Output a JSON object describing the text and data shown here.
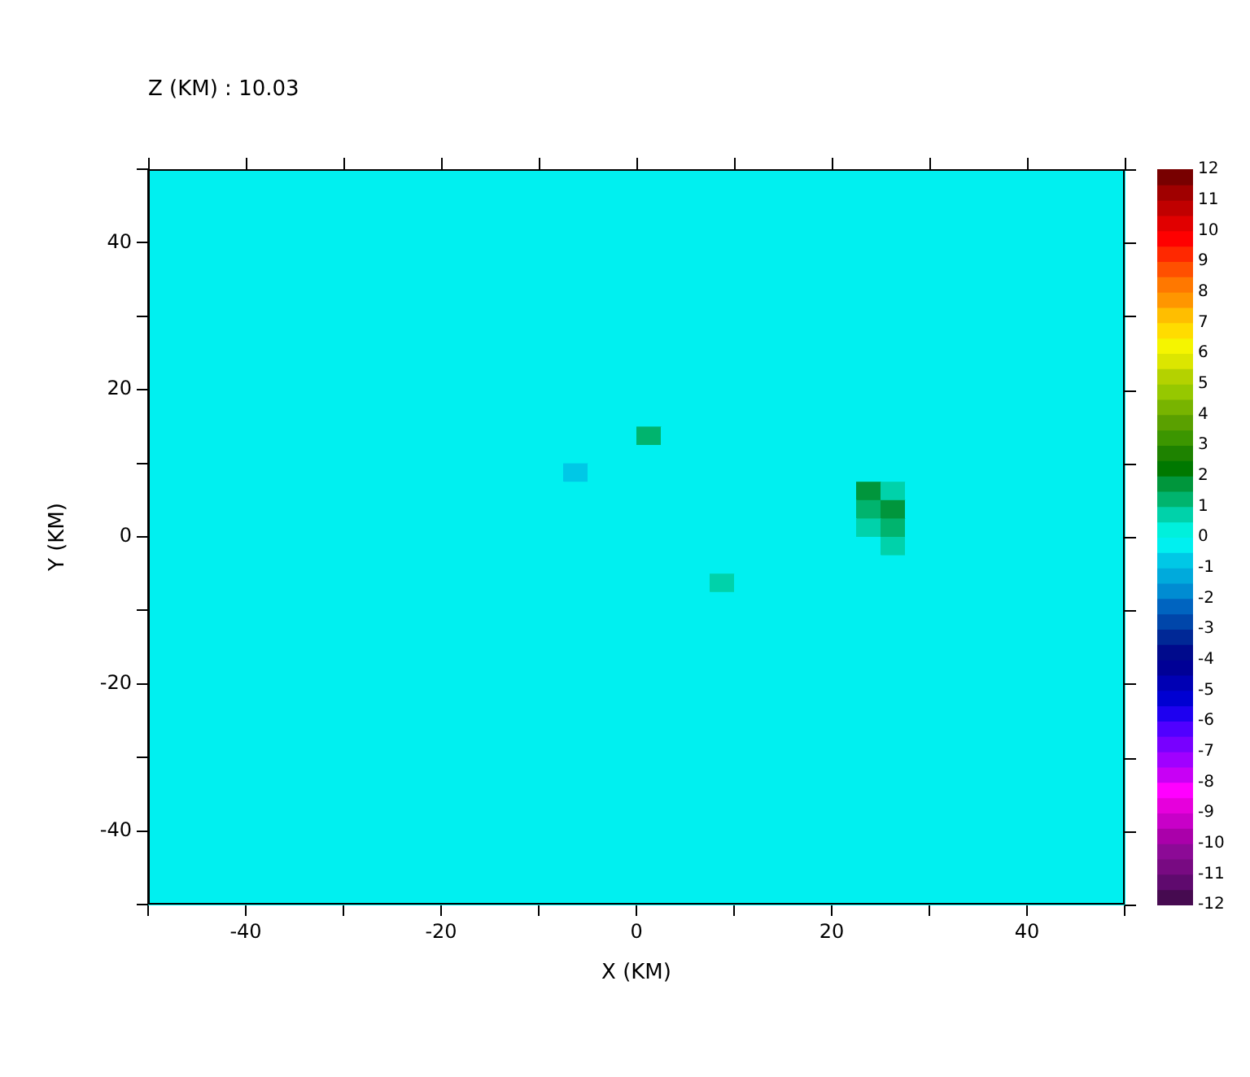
{
  "chart_data": {
    "type": "heatmap",
    "title": "Z (KM) : 10.03",
    "xlabel": "X (KM)",
    "ylabel": "Y (KM)",
    "x": [
      -48.75,
      -46.25,
      -43.75,
      -41.25,
      -38.75,
      -36.25,
      -33.75,
      -31.25,
      -28.75,
      -26.25,
      -23.75,
      -21.25,
      -18.75,
      -16.25,
      -13.75,
      -11.25,
      -8.75,
      -6.25,
      -3.75,
      -1.25,
      1.25,
      3.75,
      6.25,
      8.75,
      11.25,
      13.75,
      16.25,
      18.75,
      21.25,
      23.75,
      26.25,
      28.75,
      31.25,
      33.75,
      36.25,
      38.75,
      41.25,
      43.75,
      46.25,
      48.75
    ],
    "y": [
      48.75,
      46.25,
      43.75,
      41.25,
      38.75,
      36.25,
      33.75,
      31.25,
      28.75,
      26.25,
      23.75,
      21.25,
      18.75,
      16.25,
      13.75,
      11.25,
      8.75,
      6.25,
      3.75,
      1.25,
      -1.25,
      -3.75,
      -6.25,
      -8.75,
      -11.25,
      -13.75,
      -16.25,
      -18.75,
      -21.25,
      -23.75,
      -26.25,
      -28.75,
      -31.25,
      -33.75,
      -36.25,
      -38.75,
      -41.25,
      -43.75,
      -46.25,
      -48.75
    ],
    "xlim": [
      -50,
      50
    ],
    "ylim": [
      -50,
      50
    ],
    "xticks": [
      {
        "value": -50,
        "label": null
      },
      -40,
      {
        "value": -30,
        "label": null
      },
      -20,
      {
        "value": -10,
        "label": null
      },
      0,
      {
        "value": 10,
        "label": null
      },
      20,
      {
        "value": 30,
        "label": null
      },
      40,
      {
        "value": 50,
        "label": null
      }
    ],
    "yticks": [
      {
        "value": -50,
        "label": null
      },
      -40,
      {
        "value": -30,
        "label": null
      },
      -20,
      {
        "value": -10,
        "label": null
      },
      0,
      {
        "value": 10,
        "label": null
      },
      20,
      {
        "value": 30,
        "label": null
      },
      40,
      {
        "value": 50,
        "label": null
      }
    ],
    "clim": [
      -12,
      12
    ],
    "cticks": [
      -12,
      -11,
      -10,
      -9,
      -8,
      -7,
      -6,
      -5,
      -4,
      -3,
      -2,
      -1,
      0,
      1,
      2,
      3,
      4,
      5,
      6,
      7,
      8,
      9,
      10,
      11,
      12
    ],
    "cells": [
      [
        -0.25,
        -0.25,
        -0.25,
        -0.25,
        -0.25,
        -0.25,
        -0.25,
        -0.25,
        -0.25,
        -0.25,
        -0.25,
        -0.25,
        -0.25,
        -0.25,
        -0.25,
        -0.25,
        -0.25,
        -0.25,
        -0.25,
        -0.25,
        -0.25,
        -0.25,
        -0.25,
        -0.25,
        -0.25,
        -0.25,
        -0.25,
        -0.25,
        -0.25,
        -0.25,
        -0.25,
        -0.25,
        -0.25,
        -0.25,
        -0.25,
        -0.25,
        -0.25,
        -0.25,
        -0.25,
        -0.25
      ],
      [
        -0.25,
        -0.25,
        -0.25,
        -0.25,
        -0.25,
        -0.25,
        -0.25,
        -0.25,
        -0.25,
        -0.25,
        -0.25,
        -0.25,
        -0.25,
        -0.25,
        -0.25,
        -0.25,
        -0.25,
        -0.25,
        -0.25,
        -0.25,
        -0.25,
        -0.25,
        -0.25,
        -0.25,
        -0.25,
        -0.25,
        -0.25,
        -0.25,
        -0.25,
        -0.25,
        -0.25,
        -0.25,
        -0.25,
        -0.25,
        -0.25,
        -0.25,
        -0.25,
        -0.25,
        -0.25,
        -0.25
      ],
      [
        -0.25,
        -0.25,
        -0.25,
        -0.25,
        -0.25,
        -0.25,
        -0.25,
        -0.25,
        -0.25,
        -0.25,
        -0.25,
        -0.25,
        -0.25,
        -0.25,
        -0.25,
        -0.25,
        -0.25,
        -0.25,
        -0.25,
        -0.25,
        -0.25,
        -0.25,
        -0.25,
        -0.25,
        -0.25,
        -0.25,
        -0.25,
        -0.25,
        -0.25,
        -0.25,
        -0.25,
        -0.25,
        -0.25,
        -0.25,
        -0.25,
        -0.25,
        -0.25,
        -0.25,
        -0.25,
        -0.25
      ],
      [
        -0.25,
        -0.25,
        -0.25,
        -0.25,
        -0.25,
        -0.25,
        -0.25,
        -0.25,
        -0.25,
        -0.25,
        -0.25,
        -0.25,
        -0.25,
        -0.25,
        -0.25,
        -0.25,
        -0.25,
        -0.25,
        -0.25,
        -0.25,
        -0.25,
        -0.25,
        -0.25,
        -0.25,
        -0.25,
        -0.25,
        -0.25,
        -0.25,
        -0.25,
        -0.25,
        -0.25,
        -0.25,
        -0.25,
        -0.25,
        -0.25,
        -0.25,
        -0.25,
        -0.25,
        -0.25,
        -0.25
      ],
      [
        -0.25,
        -0.25,
        -0.25,
        -0.25,
        -0.25,
        -0.25,
        -0.25,
        -0.25,
        -0.25,
        -0.25,
        -0.25,
        -0.25,
        -0.25,
        -0.25,
        -0.25,
        -0.25,
        -0.25,
        -0.25,
        -0.25,
        -0.25,
        -0.25,
        -0.25,
        -0.25,
        -0.25,
        -0.25,
        -0.25,
        -0.25,
        -0.25,
        -0.25,
        -0.25,
        -0.25,
        -0.25,
        -0.25,
        -0.25,
        -0.25,
        -0.25,
        -0.25,
        -0.25,
        -0.25,
        -0.25
      ],
      [
        -0.25,
        -0.25,
        -0.25,
        -0.25,
        -0.25,
        -0.25,
        -0.25,
        -0.25,
        -0.25,
        -0.25,
        -0.25,
        -0.25,
        -0.25,
        -0.25,
        -0.25,
        -0.25,
        -0.25,
        -0.25,
        -0.25,
        -0.25,
        -0.25,
        -0.25,
        -0.25,
        -0.25,
        -0.25,
        -0.25,
        -0.25,
        -0.25,
        -0.25,
        -0.25,
        -0.25,
        -0.25,
        -0.25,
        -0.25,
        -0.25,
        -0.25,
        -0.25,
        -0.25,
        -0.25,
        -0.25
      ],
      [
        -0.25,
        -0.25,
        -0.25,
        -0.25,
        -0.25,
        -0.25,
        -0.25,
        -0.25,
        -0.25,
        -0.25,
        -0.25,
        -0.25,
        -0.25,
        -0.25,
        -0.25,
        -0.25,
        -0.25,
        -0.25,
        -0.25,
        -0.25,
        -0.25,
        -0.25,
        -0.25,
        -0.25,
        -0.25,
        -0.25,
        -0.25,
        -0.25,
        -0.25,
        -0.25,
        -0.25,
        -0.25,
        -0.25,
        -0.25,
        -0.25,
        -0.25,
        -0.25,
        -0.25,
        -0.25,
        -0.25
      ],
      [
        -0.25,
        -0.25,
        -0.25,
        -0.25,
        -0.25,
        -0.25,
        -0.25,
        -0.25,
        -0.25,
        -0.25,
        -0.25,
        -0.25,
        -0.25,
        -0.25,
        -0.25,
        -0.25,
        -0.25,
        -0.25,
        -0.25,
        -0.25,
        -0.25,
        -0.25,
        -0.25,
        -0.25,
        -0.25,
        -0.25,
        -0.25,
        -0.25,
        -0.25,
        -0.25,
        -0.25,
        -0.25,
        -0.25,
        -0.25,
        -0.25,
        -0.25,
        -0.25,
        -0.25,
        -0.25,
        -0.25
      ],
      [
        -0.25,
        -0.25,
        -0.25,
        -0.25,
        -0.25,
        -0.25,
        -0.25,
        -0.25,
        -0.25,
        -0.25,
        -0.25,
        -0.25,
        -0.25,
        -0.25,
        -0.25,
        -0.25,
        -0.25,
        -0.25,
        -0.25,
        -0.25,
        -0.25,
        -0.25,
        -0.25,
        -0.25,
        -0.25,
        -0.25,
        -0.25,
        -0.25,
        -0.25,
        -0.25,
        -0.25,
        -0.25,
        -0.25,
        -0.25,
        -0.25,
        -0.25,
        -0.25,
        -0.25,
        -0.25,
        -0.25
      ],
      [
        -0.25,
        -0.25,
        -0.25,
        -0.25,
        -0.25,
        -0.25,
        -0.25,
        -0.25,
        -0.25,
        -0.25,
        -0.25,
        -0.25,
        -0.25,
        -0.25,
        -0.25,
        -0.25,
        -0.25,
        -0.25,
        -0.25,
        -0.25,
        -0.25,
        -0.25,
        -0.25,
        -0.25,
        -0.25,
        -0.25,
        -0.25,
        -0.25,
        -0.25,
        -0.25,
        -0.25,
        -0.25,
        -0.25,
        -0.25,
        -0.25,
        -0.25,
        -0.25,
        -0.25,
        -0.25,
        -0.25
      ],
      [
        -0.25,
        -0.25,
        -0.25,
        -0.25,
        -0.25,
        -0.25,
        -0.25,
        -0.25,
        -0.25,
        -0.25,
        -0.25,
        -0.25,
        -0.25,
        -0.25,
        -0.25,
        -0.25,
        -0.25,
        -0.25,
        -0.25,
        -0.25,
        -0.25,
        -0.25,
        -0.25,
        -0.25,
        -0.25,
        -0.25,
        -0.25,
        -0.25,
        -0.25,
        -0.25,
        -0.25,
        -0.25,
        -0.25,
        -0.25,
        -0.25,
        -0.25,
        -0.25,
        -0.25,
        -0.25,
        -0.25
      ],
      [
        -0.25,
        -0.25,
        -0.25,
        -0.25,
        -0.25,
        -0.25,
        -0.25,
        -0.25,
        -0.25,
        -0.25,
        -0.25,
        -0.25,
        -0.25,
        -0.25,
        -0.25,
        -0.25,
        -0.25,
        -0.25,
        -0.25,
        -0.25,
        -0.25,
        -0.25,
        -0.25,
        -0.25,
        -0.25,
        -0.25,
        -0.25,
        -0.25,
        -0.25,
        -0.25,
        -0.25,
        -0.25,
        -0.25,
        -0.25,
        -0.25,
        -0.25,
        -0.25,
        -0.25,
        -0.25,
        -0.25
      ],
      [
        -0.25,
        -0.25,
        -0.25,
        -0.25,
        -0.25,
        -0.25,
        -0.25,
        -0.25,
        -0.25,
        -0.25,
        -0.25,
        -0.25,
        -0.25,
        -0.25,
        -0.25,
        -0.25,
        -0.25,
        -0.25,
        -0.25,
        -0.25,
        -0.25,
        -0.25,
        -0.25,
        -0.25,
        -0.25,
        -0.25,
        -0.25,
        -0.25,
        -0.25,
        -0.25,
        -0.25,
        -0.25,
        -0.25,
        -0.25,
        -0.25,
        -0.25,
        -0.25,
        -0.25,
        -0.25,
        -0.25
      ],
      [
        -0.25,
        -0.25,
        -0.25,
        -0.25,
        -0.25,
        -0.25,
        -0.25,
        -0.25,
        -0.25,
        -0.25,
        -0.25,
        -0.25,
        -0.25,
        -0.25,
        -0.25,
        -0.25,
        -0.25,
        -0.25,
        -0.25,
        -0.25,
        -0.25,
        -0.25,
        -0.25,
        -0.25,
        -0.25,
        -0.25,
        -0.25,
        -0.25,
        -0.25,
        -0.25,
        -0.25,
        -0.25,
        -0.25,
        -0.25,
        -0.25,
        -0.25,
        -0.25,
        -0.25,
        -0.25,
        -0.25
      ],
      [
        -0.25,
        -0.25,
        -0.25,
        -0.25,
        -0.25,
        -0.25,
        -0.25,
        -0.25,
        -0.25,
        -0.25,
        -0.25,
        -0.25,
        -0.25,
        -0.25,
        -0.25,
        -0.25,
        -0.25,
        -0.25,
        -0.25,
        -0.25,
        1.25,
        -0.25,
        -0.25,
        -0.25,
        -0.25,
        -0.25,
        -0.25,
        -0.25,
        -0.25,
        -0.25,
        -0.25,
        -0.25,
        -0.25,
        -0.25,
        -0.25,
        -0.25,
        -0.25,
        -0.25,
        -0.25,
        -0.25
      ],
      [
        -0.25,
        -0.25,
        -0.25,
        -0.25,
        -0.25,
        -0.25,
        -0.25,
        -0.25,
        -0.25,
        -0.25,
        -0.25,
        -0.25,
        -0.25,
        -0.25,
        -0.25,
        -0.25,
        -0.25,
        -0.25,
        -0.25,
        -0.25,
        -0.25,
        -0.25,
        -0.25,
        -0.25,
        -0.25,
        -0.25,
        -0.25,
        -0.25,
        -0.25,
        -0.25,
        -0.25,
        -0.25,
        -0.25,
        -0.25,
        -0.25,
        -0.25,
        -0.25,
        -0.25,
        -0.25,
        -0.25
      ],
      [
        -0.25,
        -0.25,
        -0.25,
        -0.25,
        -0.25,
        -0.25,
        -0.25,
        -0.25,
        -0.25,
        -0.25,
        -0.25,
        -0.25,
        -0.25,
        -0.25,
        -0.25,
        -0.25,
        -0.25,
        -0.75,
        -0.25,
        -0.25,
        -0.25,
        -0.25,
        -0.25,
        -0.25,
        -0.25,
        -0.25,
        -0.25,
        -0.25,
        -0.25,
        -0.25,
        -0.25,
        -0.25,
        -0.25,
        -0.25,
        -0.25,
        -0.25,
        -0.25,
        -0.25,
        -0.25,
        -0.25
      ],
      [
        -0.25,
        -0.25,
        -0.25,
        -0.25,
        -0.25,
        -0.25,
        -0.25,
        -0.25,
        -0.25,
        -0.25,
        -0.25,
        -0.25,
        -0.25,
        -0.25,
        -0.25,
        -0.25,
        -0.25,
        -0.25,
        -0.25,
        -0.25,
        -0.25,
        -0.25,
        -0.25,
        -0.25,
        -0.25,
        -0.25,
        -0.25,
        -0.25,
        -0.25,
        1.75,
        0.75,
        -0.25,
        -0.25,
        -0.25,
        -0.25,
        -0.25,
        -0.25,
        -0.25,
        -0.25,
        -0.25
      ],
      [
        -0.25,
        -0.25,
        -0.25,
        -0.25,
        -0.25,
        -0.25,
        -0.25,
        -0.25,
        -0.25,
        -0.25,
        -0.25,
        -0.25,
        -0.25,
        -0.25,
        -0.25,
        -0.25,
        -0.25,
        -0.25,
        -0.25,
        -0.25,
        -0.25,
        -0.25,
        -0.25,
        -0.25,
        -0.25,
        -0.25,
        -0.25,
        -0.25,
        -0.25,
        1.25,
        1.75,
        -0.25,
        -0.25,
        -0.25,
        -0.25,
        -0.25,
        -0.25,
        -0.25,
        -0.25,
        -0.25
      ],
      [
        -0.25,
        -0.25,
        -0.25,
        -0.25,
        -0.25,
        -0.25,
        -0.25,
        -0.25,
        -0.25,
        -0.25,
        -0.25,
        -0.25,
        -0.25,
        -0.25,
        -0.25,
        -0.25,
        -0.25,
        -0.25,
        -0.25,
        -0.25,
        -0.25,
        -0.25,
        -0.25,
        -0.25,
        -0.25,
        -0.25,
        -0.25,
        -0.25,
        -0.25,
        0.75,
        1.25,
        -0.25,
        -0.25,
        -0.25,
        -0.25,
        -0.25,
        -0.25,
        -0.25,
        -0.25,
        -0.25
      ],
      [
        -0.25,
        -0.25,
        -0.25,
        -0.25,
        -0.25,
        -0.25,
        -0.25,
        -0.25,
        -0.25,
        -0.25,
        -0.25,
        -0.25,
        -0.25,
        -0.25,
        -0.25,
        -0.25,
        -0.25,
        -0.25,
        -0.25,
        -0.25,
        -0.25,
        -0.25,
        -0.25,
        -0.25,
        -0.25,
        -0.25,
        -0.25,
        -0.25,
        -0.25,
        -0.25,
        0.75,
        -0.25,
        -0.25,
        -0.25,
        -0.25,
        -0.25,
        -0.25,
        -0.25,
        -0.25,
        -0.25
      ],
      [
        -0.25,
        -0.25,
        -0.25,
        -0.25,
        -0.25,
        -0.25,
        -0.25,
        -0.25,
        -0.25,
        -0.25,
        -0.25,
        -0.25,
        -0.25,
        -0.25,
        -0.25,
        -0.25,
        -0.25,
        -0.25,
        -0.25,
        -0.25,
        -0.25,
        -0.25,
        -0.25,
        -0.25,
        -0.25,
        -0.25,
        -0.25,
        -0.25,
        -0.25,
        -0.25,
        -0.25,
        -0.25,
        -0.25,
        -0.25,
        -0.25,
        -0.25,
        -0.25,
        -0.25,
        -0.25,
        -0.25
      ],
      [
        -0.25,
        -0.25,
        -0.25,
        -0.25,
        -0.25,
        -0.25,
        -0.25,
        -0.25,
        -0.25,
        -0.25,
        -0.25,
        -0.25,
        -0.25,
        -0.25,
        -0.25,
        -0.25,
        -0.25,
        -0.25,
        -0.25,
        -0.25,
        -0.25,
        -0.25,
        -0.25,
        0.75,
        -0.25,
        -0.25,
        -0.25,
        -0.25,
        -0.25,
        -0.25,
        -0.25,
        -0.25,
        -0.25,
        -0.25,
        -0.25,
        -0.25,
        -0.25,
        -0.25,
        -0.25,
        -0.25
      ],
      [
        -0.25,
        -0.25,
        -0.25,
        -0.25,
        -0.25,
        -0.25,
        -0.25,
        -0.25,
        -0.25,
        -0.25,
        -0.25,
        -0.25,
        -0.25,
        -0.25,
        -0.25,
        -0.25,
        -0.25,
        -0.25,
        -0.25,
        -0.25,
        -0.25,
        -0.25,
        -0.25,
        -0.25,
        -0.25,
        -0.25,
        -0.25,
        -0.25,
        -0.25,
        -0.25,
        -0.25,
        -0.25,
        -0.25,
        -0.25,
        -0.25,
        -0.25,
        -0.25,
        -0.25,
        -0.25,
        -0.25
      ],
      [
        -0.25,
        -0.25,
        -0.25,
        -0.25,
        -0.25,
        -0.25,
        -0.25,
        -0.25,
        -0.25,
        -0.25,
        -0.25,
        -0.25,
        -0.25,
        -0.25,
        -0.25,
        -0.25,
        -0.25,
        -0.25,
        -0.25,
        -0.25,
        -0.25,
        -0.25,
        -0.25,
        -0.25,
        -0.25,
        -0.25,
        -0.25,
        -0.25,
        -0.25,
        -0.25,
        -0.25,
        -0.25,
        -0.25,
        -0.25,
        -0.25,
        -0.25,
        -0.25,
        -0.25,
        -0.25,
        -0.25
      ],
      [
        -0.25,
        -0.25,
        -0.25,
        -0.25,
        -0.25,
        -0.25,
        -0.25,
        -0.25,
        -0.25,
        -0.25,
        -0.25,
        -0.25,
        -0.25,
        -0.25,
        -0.25,
        -0.25,
        -0.25,
        -0.25,
        -0.25,
        -0.25,
        -0.25,
        -0.25,
        -0.25,
        -0.25,
        -0.25,
        -0.25,
        -0.25,
        -0.25,
        -0.25,
        -0.25,
        -0.25,
        -0.25,
        -0.25,
        -0.25,
        -0.25,
        -0.25,
        -0.25,
        -0.25,
        -0.25,
        -0.25
      ],
      [
        -0.25,
        -0.25,
        -0.25,
        -0.25,
        -0.25,
        -0.25,
        -0.25,
        -0.25,
        -0.25,
        -0.25,
        -0.25,
        -0.25,
        -0.25,
        -0.25,
        -0.25,
        -0.25,
        -0.25,
        -0.25,
        -0.25,
        -0.25,
        -0.25,
        -0.25,
        -0.25,
        -0.25,
        -0.25,
        -0.25,
        -0.25,
        -0.25,
        -0.25,
        -0.25,
        -0.25,
        -0.25,
        -0.25,
        -0.25,
        -0.25,
        -0.25,
        -0.25,
        -0.25,
        -0.25,
        -0.25
      ],
      [
        -0.25,
        -0.25,
        -0.25,
        -0.25,
        -0.25,
        -0.25,
        -0.25,
        -0.25,
        -0.25,
        -0.25,
        -0.25,
        -0.25,
        -0.25,
        -0.25,
        -0.25,
        -0.25,
        -0.25,
        -0.25,
        -0.25,
        -0.25,
        -0.25,
        -0.25,
        -0.25,
        -0.25,
        -0.25,
        -0.25,
        -0.25,
        -0.25,
        -0.25,
        -0.25,
        -0.25,
        -0.25,
        -0.25,
        -0.25,
        -0.25,
        -0.25,
        -0.25,
        -0.25,
        -0.25,
        -0.25
      ],
      [
        -0.25,
        -0.25,
        -0.25,
        -0.25,
        -0.25,
        -0.25,
        -0.25,
        -0.25,
        -0.25,
        -0.25,
        -0.25,
        -0.25,
        -0.25,
        -0.25,
        -0.25,
        -0.25,
        -0.25,
        -0.25,
        -0.25,
        -0.25,
        -0.25,
        -0.25,
        -0.25,
        -0.25,
        -0.25,
        -0.25,
        -0.25,
        -0.25,
        -0.25,
        -0.25,
        -0.25,
        -0.25,
        -0.25,
        -0.25,
        -0.25,
        -0.25,
        -0.25,
        -0.25,
        -0.25,
        -0.25
      ],
      [
        -0.25,
        -0.25,
        -0.25,
        -0.25,
        -0.25,
        -0.25,
        -0.25,
        -0.25,
        -0.25,
        -0.25,
        -0.25,
        -0.25,
        -0.25,
        -0.25,
        -0.25,
        -0.25,
        -0.25,
        -0.25,
        -0.25,
        -0.25,
        -0.25,
        -0.25,
        -0.25,
        -0.25,
        -0.25,
        -0.25,
        -0.25,
        -0.25,
        -0.25,
        -0.25,
        -0.25,
        -0.25,
        -0.25,
        -0.25,
        -0.25,
        -0.25,
        -0.25,
        -0.25,
        -0.25,
        -0.25
      ],
      [
        -0.25,
        -0.25,
        -0.25,
        -0.25,
        -0.25,
        -0.25,
        -0.25,
        -0.25,
        -0.25,
        -0.25,
        -0.25,
        -0.25,
        -0.25,
        -0.25,
        -0.25,
        -0.25,
        -0.25,
        -0.25,
        -0.25,
        -0.25,
        -0.25,
        -0.25,
        -0.25,
        -0.25,
        -0.25,
        -0.25,
        -0.25,
        -0.25,
        -0.25,
        -0.25,
        -0.25,
        -0.25,
        -0.25,
        -0.25,
        -0.25,
        -0.25,
        -0.25,
        -0.25,
        -0.25,
        -0.25
      ],
      [
        -0.25,
        -0.25,
        -0.25,
        -0.25,
        -0.25,
        -0.25,
        -0.25,
        -0.25,
        -0.25,
        -0.25,
        -0.25,
        -0.25,
        -0.25,
        -0.25,
        -0.25,
        -0.25,
        -0.25,
        -0.25,
        -0.25,
        -0.25,
        -0.25,
        -0.25,
        -0.25,
        -0.25,
        -0.25,
        -0.25,
        -0.25,
        -0.25,
        -0.25,
        -0.25,
        -0.25,
        -0.25,
        -0.25,
        -0.25,
        -0.25,
        -0.25,
        -0.25,
        -0.25,
        -0.25,
        -0.25
      ],
      [
        -0.25,
        -0.25,
        -0.25,
        -0.25,
        -0.25,
        -0.25,
        -0.25,
        -0.25,
        -0.25,
        -0.25,
        -0.25,
        -0.25,
        -0.25,
        -0.25,
        -0.25,
        -0.25,
        -0.25,
        -0.25,
        -0.25,
        -0.25,
        -0.25,
        -0.25,
        -0.25,
        -0.25,
        -0.25,
        -0.25,
        -0.25,
        -0.25,
        -0.25,
        -0.25,
        -0.25,
        -0.25,
        -0.25,
        -0.25,
        -0.25,
        -0.25,
        -0.25,
        -0.25,
        -0.25,
        -0.25
      ],
      [
        -0.25,
        -0.25,
        -0.25,
        -0.25,
        -0.25,
        -0.25,
        -0.25,
        -0.25,
        -0.25,
        -0.25,
        -0.25,
        -0.25,
        -0.25,
        -0.25,
        -0.25,
        -0.25,
        -0.25,
        -0.25,
        -0.25,
        -0.25,
        -0.25,
        -0.25,
        -0.25,
        -0.25,
        -0.25,
        -0.25,
        -0.25,
        -0.25,
        -0.25,
        -0.25,
        -0.25,
        -0.25,
        -0.25,
        -0.25,
        -0.25,
        -0.25,
        -0.25,
        -0.25,
        -0.25,
        -0.25
      ],
      [
        -0.25,
        -0.25,
        -0.25,
        -0.25,
        -0.25,
        -0.25,
        -0.25,
        -0.25,
        -0.25,
        -0.25,
        -0.25,
        -0.25,
        -0.25,
        -0.25,
        -0.25,
        -0.25,
        -0.25,
        -0.25,
        -0.25,
        -0.25,
        -0.25,
        -0.25,
        -0.25,
        -0.25,
        -0.25,
        -0.25,
        -0.25,
        -0.25,
        -0.25,
        -0.25,
        -0.25,
        -0.25,
        -0.25,
        -0.25,
        -0.25,
        -0.25,
        -0.25,
        -0.25,
        -0.25,
        -0.25
      ],
      [
        -0.25,
        -0.25,
        -0.25,
        -0.25,
        -0.25,
        -0.25,
        -0.25,
        -0.25,
        -0.25,
        -0.25,
        -0.25,
        -0.25,
        -0.25,
        -0.25,
        -0.25,
        -0.25,
        -0.25,
        -0.25,
        -0.25,
        -0.25,
        -0.25,
        -0.25,
        -0.25,
        -0.25,
        -0.25,
        -0.25,
        -0.25,
        -0.25,
        -0.25,
        -0.25,
        -0.25,
        -0.25,
        -0.25,
        -0.25,
        -0.25,
        -0.25,
        -0.25,
        -0.25,
        -0.25,
        -0.25
      ],
      [
        -0.25,
        -0.25,
        -0.25,
        -0.25,
        -0.25,
        -0.25,
        -0.25,
        -0.25,
        -0.25,
        -0.25,
        -0.25,
        -0.25,
        -0.25,
        -0.25,
        -0.25,
        -0.25,
        -0.25,
        -0.25,
        -0.25,
        -0.25,
        -0.25,
        -0.25,
        -0.25,
        -0.25,
        -0.25,
        -0.25,
        -0.25,
        -0.25,
        -0.25,
        -0.25,
        -0.25,
        -0.25,
        -0.25,
        -0.25,
        -0.25,
        -0.25,
        -0.25,
        -0.25,
        -0.25,
        -0.25
      ],
      [
        -0.25,
        -0.25,
        -0.25,
        -0.25,
        -0.25,
        -0.25,
        -0.25,
        -0.25,
        -0.25,
        -0.25,
        -0.25,
        -0.25,
        -0.25,
        -0.25,
        -0.25,
        -0.25,
        -0.25,
        -0.25,
        -0.25,
        -0.25,
        -0.25,
        -0.25,
        -0.25,
        -0.25,
        -0.25,
        -0.25,
        -0.25,
        -0.25,
        -0.25,
        -0.25,
        -0.25,
        -0.25,
        -0.25,
        -0.25,
        -0.25,
        -0.25,
        -0.25,
        -0.25,
        -0.25,
        -0.25
      ],
      [
        -0.25,
        -0.25,
        -0.25,
        -0.25,
        -0.25,
        -0.25,
        -0.25,
        -0.25,
        -0.25,
        -0.25,
        -0.25,
        -0.25,
        -0.25,
        -0.25,
        -0.25,
        -0.25,
        -0.25,
        -0.25,
        -0.25,
        -0.25,
        -0.25,
        -0.25,
        -0.25,
        -0.25,
        -0.25,
        -0.25,
        -0.25,
        -0.25,
        -0.25,
        -0.25,
        -0.25,
        -0.25,
        -0.25,
        -0.25,
        -0.25,
        -0.25,
        -0.25,
        -0.25,
        -0.25,
        -0.25
      ],
      [
        -0.25,
        -0.25,
        -0.25,
        -0.25,
        -0.25,
        -0.25,
        -0.25,
        -0.25,
        -0.25,
        -0.25,
        -0.25,
        -0.25,
        -0.25,
        -0.25,
        -0.25,
        -0.25,
        -0.25,
        -0.25,
        -0.25,
        -0.25,
        -0.25,
        -0.25,
        -0.25,
        -0.25,
        -0.25,
        -0.25,
        -0.25,
        -0.25,
        -0.25,
        -0.25,
        -0.25,
        -0.25,
        -0.25,
        -0.25,
        -0.25,
        -0.25,
        -0.25,
        -0.25,
        -0.25,
        -0.25
      ]
    ]
  }
}
